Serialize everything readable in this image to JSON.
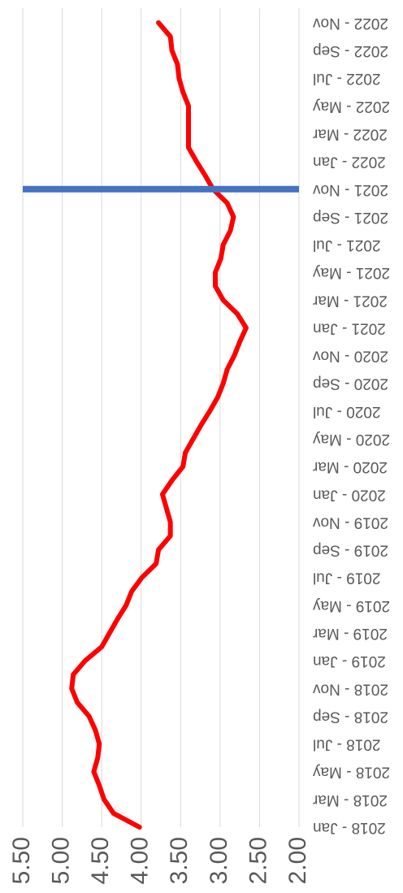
{
  "chart_data": {
    "type": "line",
    "categories": [
      "2018 - Jan",
      null,
      "2018 - Mar",
      null,
      "2018 - May",
      null,
      "2018 - Jul",
      null,
      "2018 - Sep",
      null,
      "2018 - Nov",
      null,
      "2019 - Jan",
      null,
      "2019 - Mar",
      null,
      "2019 - May",
      null,
      "2019 - Jul",
      null,
      "2019 - Sep",
      null,
      "2019 - Nov",
      null,
      "2020 - Jan",
      null,
      "2020 - Mar",
      null,
      "2020 - May",
      null,
      "2020 - Jul",
      null,
      "2020 - Sep",
      null,
      "2020 - Nov",
      null,
      "2021 - Jan",
      null,
      "2021 - Mar",
      null,
      "2021 - May",
      null,
      "2021 - Jul",
      null,
      "2021 - Sep",
      null,
      "2021 - Nov",
      null,
      "2022 - Jan",
      null,
      "2022 - Mar",
      null,
      "2022 - May",
      null,
      "2022 - Jul",
      null,
      "2022 - Sep",
      null,
      "2022 - Nov"
    ],
    "series": [
      {
        "type": "line",
        "color": "#ff0000",
        "values": [
          4.02,
          4.35,
          4.47,
          4.53,
          4.6,
          4.55,
          4.53,
          4.58,
          4.66,
          4.81,
          4.88,
          4.86,
          4.71,
          4.5,
          4.4,
          4.3,
          4.19,
          4.12,
          3.99,
          3.81,
          3.78,
          3.63,
          3.63,
          3.68,
          3.73,
          3.61,
          3.47,
          3.44,
          3.34,
          3.24,
          3.13,
          3.03,
          2.96,
          2.91,
          2.82,
          2.75,
          2.67,
          2.78,
          2.96,
          3.06,
          3.06,
          2.99,
          2.96,
          2.87,
          2.83,
          2.91,
          3.09,
          3.19,
          3.3,
          3.4,
          3.4,
          3.4,
          3.4,
          3.47,
          3.52,
          3.54,
          3.61,
          3.63,
          3.78
        ]
      },
      {
        "type": "bar",
        "color": "#4472c4",
        "values": [
          null,
          null,
          null,
          null,
          null,
          null,
          null,
          null,
          null,
          null,
          null,
          null,
          null,
          null,
          null,
          null,
          null,
          null,
          null,
          null,
          null,
          null,
          null,
          null,
          null,
          null,
          null,
          null,
          null,
          null,
          null,
          null,
          null,
          null,
          null,
          null,
          null,
          null,
          null,
          null,
          null,
          null,
          null,
          null,
          null,
          null,
          5.5,
          null,
          null,
          null,
          null,
          null,
          null,
          null,
          null,
          null,
          null,
          null,
          null
        ]
      }
    ],
    "ylim": [
      2.0,
      5.5
    ],
    "yticks": [
      {
        "value": 2.0,
        "label": "2.00"
      },
      {
        "value": 2.5,
        "label": "2.50"
      },
      {
        "value": 3.0,
        "label": "3.00"
      },
      {
        "value": 3.5,
        "label": "3.50"
      },
      {
        "value": 4.0,
        "label": "4.00"
      },
      {
        "value": 4.5,
        "label": "4.50"
      },
      {
        "value": 5.0,
        "label": "5.00"
      },
      {
        "value": 5.5,
        "label": "5.50"
      }
    ],
    "grid": true,
    "rotation": -90
  }
}
